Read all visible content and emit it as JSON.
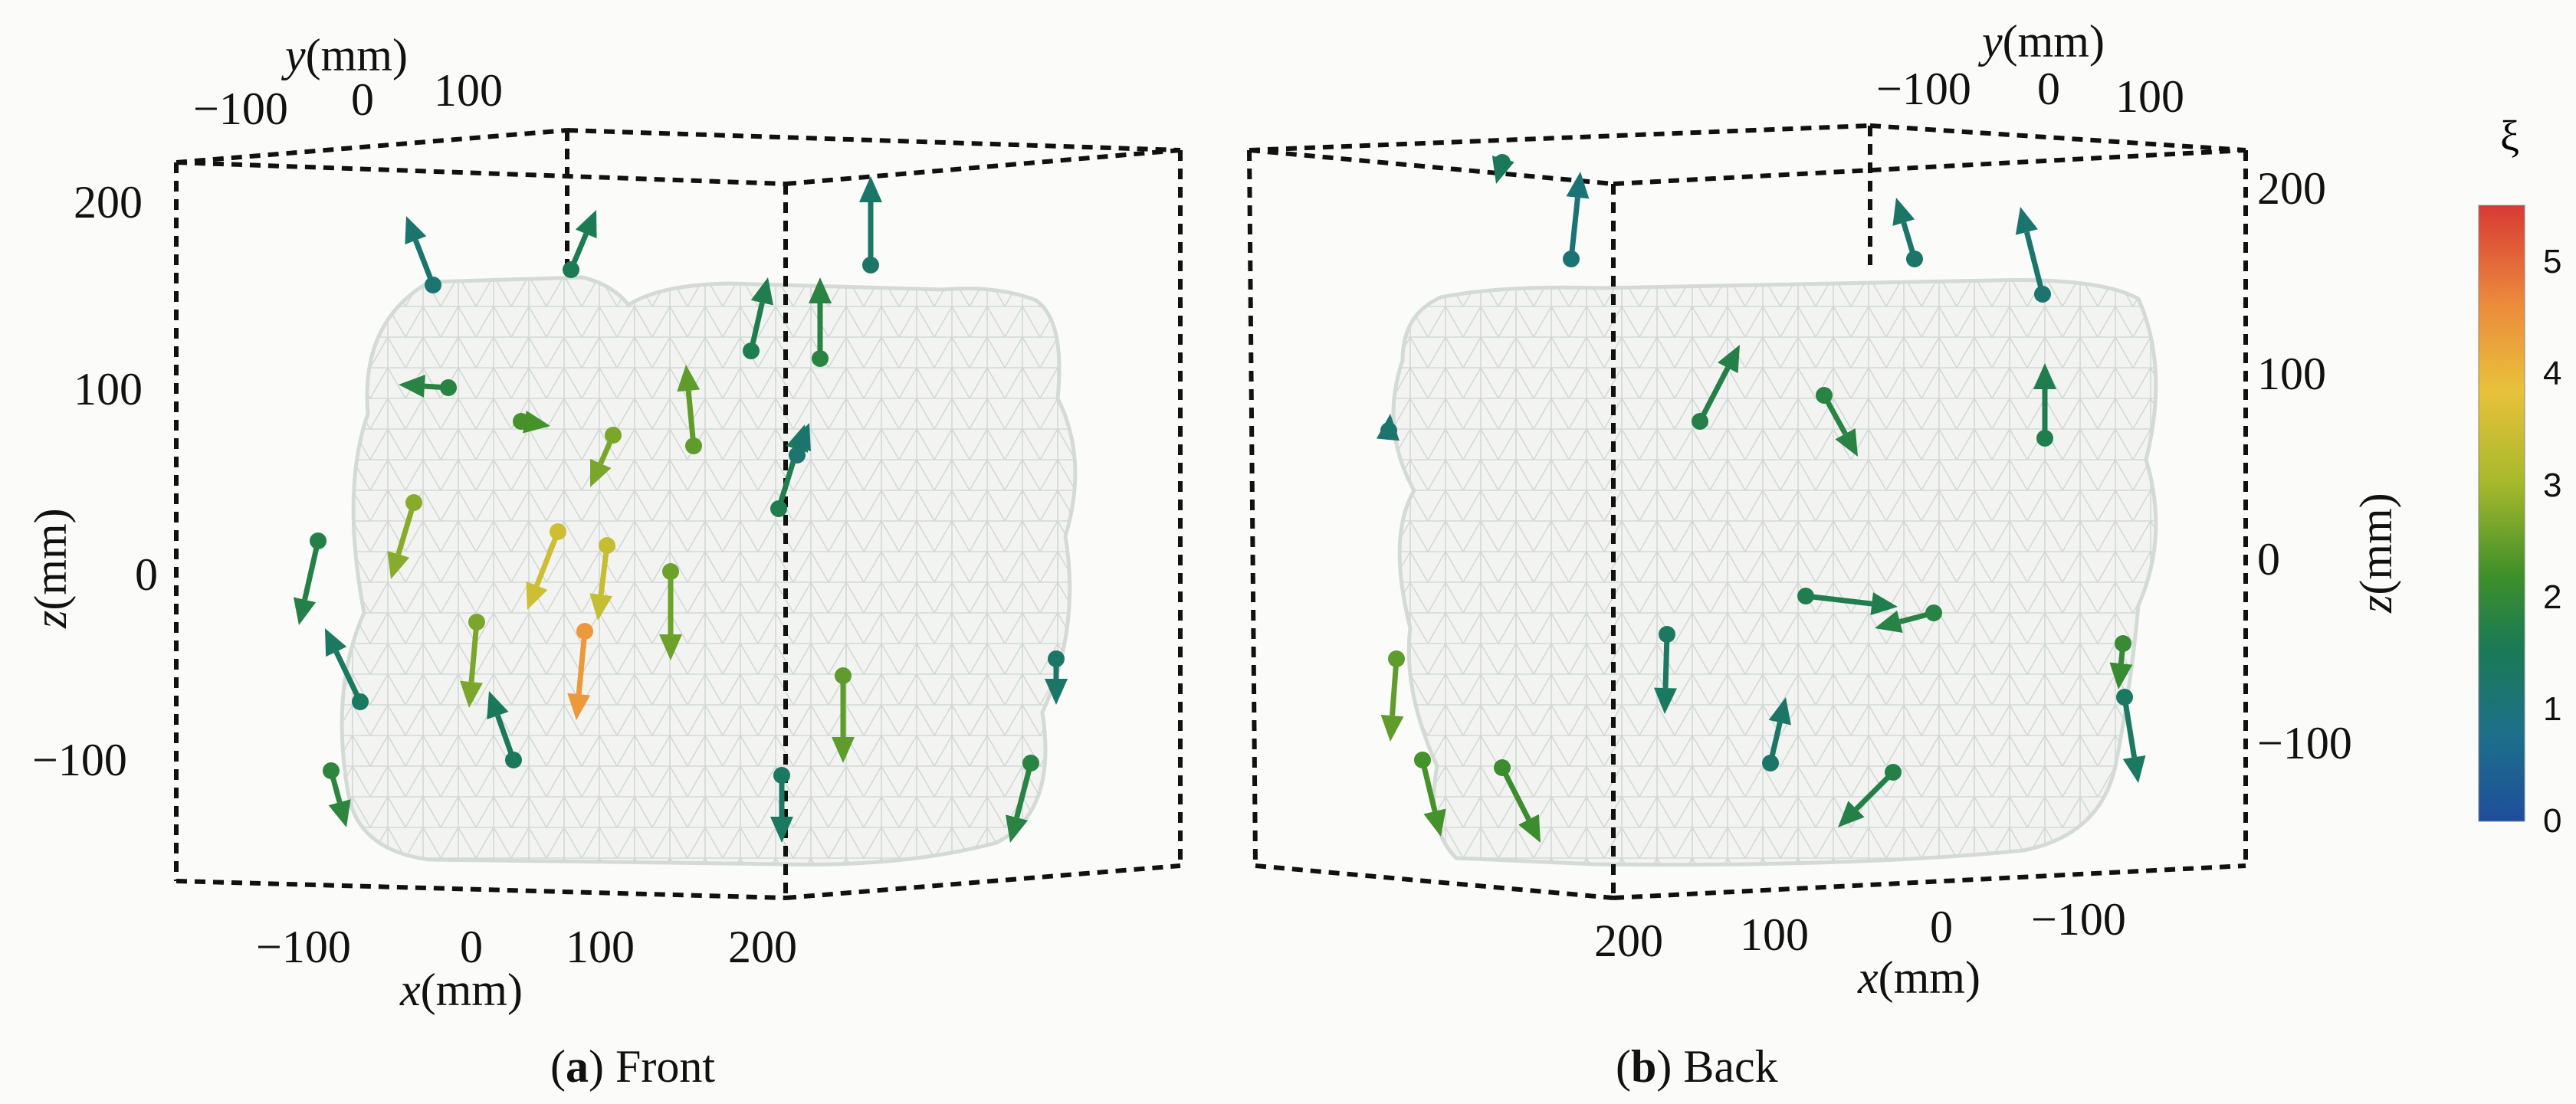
{
  "panels": [
    {
      "caption_letter": "a",
      "caption_text": " Front",
      "x_axis": {
        "label_var": "x",
        "label_unit": "(mm)",
        "ticks": [
          "−100",
          "0",
          "100",
          "200"
        ]
      },
      "y_axis": {
        "label_var": "y",
        "label_unit": "(mm)",
        "ticks": [
          "−100",
          "0",
          "100"
        ]
      },
      "z_axis": {
        "label_var": "z",
        "label_unit": "(mm)",
        "ticks": [
          "200",
          "100",
          "0",
          "−100"
        ]
      },
      "arrows_xi": [
        1.2,
        1.6,
        1.3,
        1.9,
        1.7,
        1.9,
        2.4,
        2.8,
        2.6,
        1.7,
        2.9,
        3.6,
        3.5,
        2.7,
        1.8,
        1.4,
        2.8,
        4.5,
        1.5,
        2.6,
        1.4,
        1.9,
        2.0,
        1.3,
        1.2
      ]
    },
    {
      "caption_letter": "b",
      "caption_text": " Back",
      "x_axis": {
        "label_var": "x",
        "label_unit": "(mm)",
        "ticks": [
          "200",
          "100",
          "0",
          "−100"
        ]
      },
      "y_axis": {
        "label_var": "y",
        "label_unit": "(mm)",
        "ticks": [
          "−100",
          "0",
          "100"
        ]
      },
      "z_axis": {
        "label_var": "z",
        "label_unit": "(mm)",
        "ticks": [
          "100",
          "0",
          "−100"
        ]
      },
      "arrows_xi": [
        1.1,
        1.5,
        1.3,
        1.2,
        1.9,
        1.7,
        1.8,
        1.2,
        1.7,
        1.9,
        2.6,
        2.4,
        2.3,
        1.4,
        1.3,
        1.4,
        1.8,
        2.2
      ]
    }
  ],
  "colorbar": {
    "symbol": "ξ",
    "ticks": [
      "0",
      "1",
      "2",
      "3",
      "4",
      "5"
    ],
    "min": 0,
    "max": 5.5,
    "colors": [
      "#1f4e9c",
      "#1d6f8a",
      "#1a7a55",
      "#3f8f2a",
      "#a7b92c",
      "#e8c13a",
      "#ec8a3c",
      "#d83a34"
    ]
  }
}
